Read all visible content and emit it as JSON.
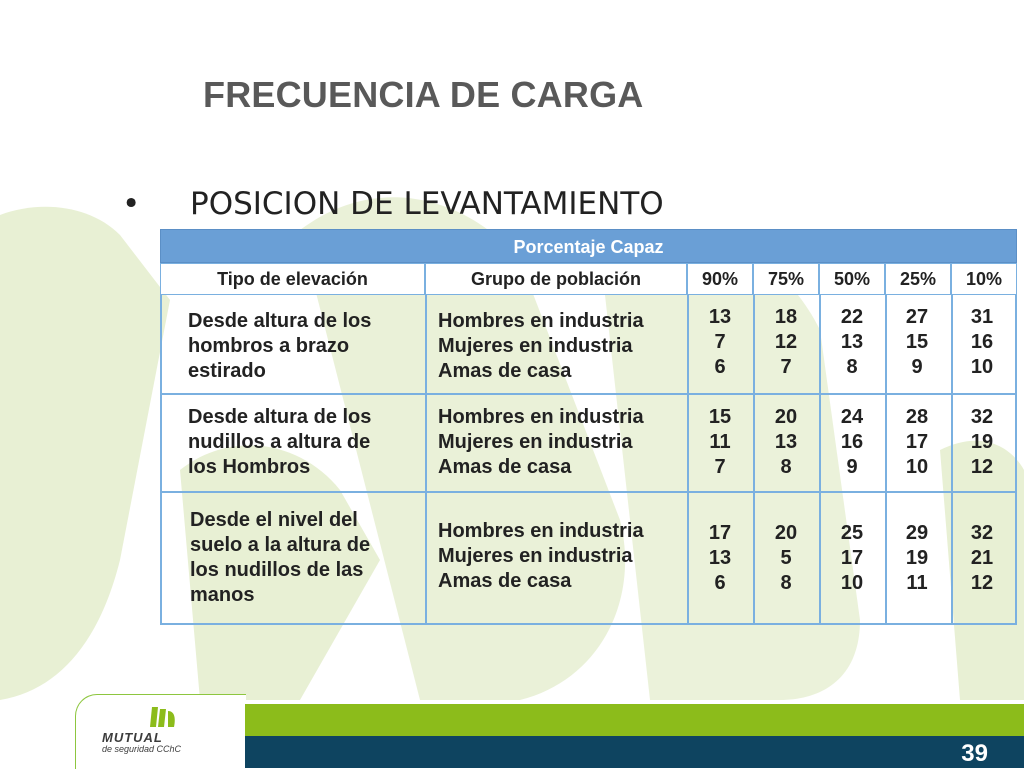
{
  "slide": {
    "title": "FRECUENCIA DE CARGA",
    "bullet": "POSICION DE LEVANTAMIENTO",
    "page_number": "39"
  },
  "logo": {
    "name": "MUTUAL",
    "tagline": "de seguridad CChC"
  },
  "colors": {
    "header_blue": "#6a9fd6",
    "border_blue": "#7ab0e0",
    "footer_green": "#8cbc1b",
    "footer_navy": "#0e4460",
    "watermark": "#e8f0d4"
  },
  "table": {
    "group_header": "Porcentaje Capaz",
    "col_tipo": "Tipo de elevación",
    "col_grupo": "Grupo de población",
    "percentages": [
      "90%",
      "75%",
      "50%",
      "25%",
      "10%"
    ],
    "rows": [
      {
        "tipo": [
          "Desde altura de los",
          "hombros a brazo",
          "estirado"
        ],
        "grupos": [
          "Hombres en industria",
          "Mujeres en industria",
          "Amas de casa"
        ],
        "values": [
          [
            "13",
            "7",
            "6"
          ],
          [
            "18",
            "12",
            "7"
          ],
          [
            "22",
            "13",
            "8"
          ],
          [
            "27",
            "15",
            "9"
          ],
          [
            "31",
            "16",
            "10"
          ]
        ]
      },
      {
        "tipo": [
          "Desde altura de los",
          "nudillos a altura de",
          "los Hombros"
        ],
        "grupos": [
          "Hombres en industria",
          "Mujeres en industria",
          "Amas de casa"
        ],
        "values": [
          [
            "15",
            "11",
            "7"
          ],
          [
            "20",
            "13",
            "8"
          ],
          [
            "24",
            "16",
            "9"
          ],
          [
            "28",
            "17",
            "10"
          ],
          [
            "32",
            "19",
            "12"
          ]
        ]
      },
      {
        "tipo": [
          "Desde el nivel del",
          "suelo a la altura de",
          "los nudillos de las",
          "manos"
        ],
        "grupos": [
          "Hombres en industria",
          "Mujeres en industria",
          "Amas de casa"
        ],
        "values": [
          [
            "17",
            "13",
            "6"
          ],
          [
            "20",
            "5",
            "8"
          ],
          [
            "25",
            "17",
            "10"
          ],
          [
            "29",
            "19",
            "11"
          ],
          [
            "32",
            "21",
            "12"
          ]
        ]
      }
    ]
  }
}
